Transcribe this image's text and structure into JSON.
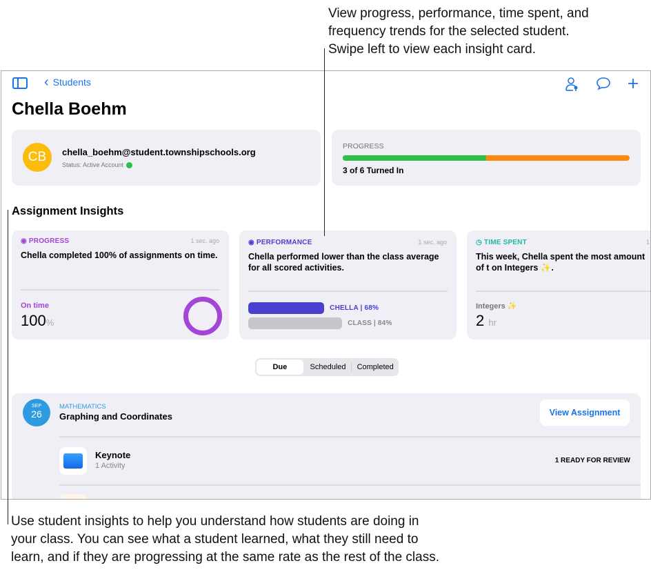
{
  "callouts": {
    "top": [
      "View progress, performance, time spent, and",
      "frequency trends for the selected student.",
      "Swipe left to view each insight card."
    ],
    "bottom": [
      "Use student insights to help you understand how students are doing in",
      "your class. You can see what a student learned, what they still need to",
      "learn, and if they are progressing at the same rate as the rest of the class."
    ]
  },
  "nav": {
    "back_label": "Students",
    "icons": [
      "sidebar-icon",
      "person-pin-icon",
      "message-icon",
      "plus-icon"
    ]
  },
  "student": {
    "name": "Chella Boehm",
    "initials": "CB",
    "email": "chella_boehm@student.townshipschools.org",
    "status": "Status: Active Account"
  },
  "progress": {
    "label": "PROGRESS",
    "summary": "3 of 6 Turned In",
    "turned_in": 3,
    "total": 6,
    "colors": {
      "done": "#30c04a",
      "remaining": "#fd8a0f"
    }
  },
  "insights": {
    "title": "Assignment Insights",
    "cards": [
      {
        "label": "PROGRESS",
        "time": "1 sec. ago",
        "text": "Chella completed 100% of assignments on time.",
        "metric_label": "On time",
        "value": "100",
        "unit": "%",
        "color": "#a544d8"
      },
      {
        "label": "PERFORMANCE",
        "time": "1 sec. ago",
        "text": "Chella performed lower than the class average for all scored activities.",
        "student_bar": "CHELLA | 68%",
        "class_bar": "CLASS | 84%",
        "student_pct": 68,
        "class_pct": 84,
        "color": "#4a3fce"
      },
      {
        "label": "TIME SPENT",
        "time": "1",
        "text": "This week, Chella spent the most amount of t on Integers ✨.",
        "metric_label": "Integers ✨",
        "value": "2",
        "unit": "hr",
        "color": "#20b8a8"
      }
    ]
  },
  "tabs": {
    "items": [
      "Due",
      "Scheduled",
      "Completed"
    ],
    "selected": "Due"
  },
  "assignment": {
    "month": "SEP",
    "day": "26",
    "subject": "MATHEMATICS",
    "title": "Graphing and Coordinates",
    "button": "View Assignment",
    "items": [
      {
        "name": "Keynote",
        "sub": "1 Activity",
        "status": "1 READY FOR REVIEW"
      }
    ]
  }
}
